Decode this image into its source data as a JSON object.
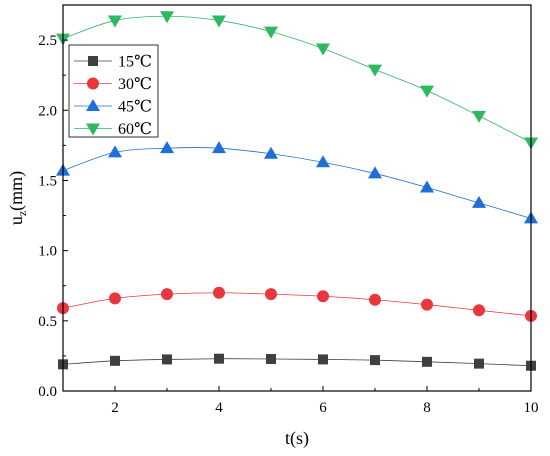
{
  "chart_data": {
    "type": "line",
    "title": "",
    "xlabel": "t(s)",
    "ylabel_main": "u",
    "ylabel_sub": "z",
    "ylabel_unit": "(mm)",
    "xlim": [
      1,
      10
    ],
    "ylim": [
      0,
      2.75
    ],
    "xticks": [
      2,
      4,
      6,
      8,
      10
    ],
    "yticks": [
      0.0,
      0.5,
      1.0,
      1.5,
      2.0,
      2.5
    ],
    "xtick_labels": [
      "2",
      "4",
      "6",
      "8",
      "10"
    ],
    "ytick_labels": [
      "0.0",
      "0.5",
      "1.0",
      "1.5",
      "2.0",
      "2.5"
    ],
    "grid": false,
    "legend_position": "top-left",
    "x": [
      1,
      2,
      3,
      4,
      5,
      6,
      7,
      8,
      9,
      10
    ],
    "series": [
      {
        "name": "15℃",
        "marker": "square",
        "color": "#404040",
        "values": [
          0.19,
          0.215,
          0.225,
          0.23,
          0.228,
          0.225,
          0.22,
          0.208,
          0.195,
          0.18
        ]
      },
      {
        "name": "30℃",
        "marker": "circle",
        "color": "#e8383d",
        "values": [
          0.59,
          0.66,
          0.69,
          0.7,
          0.69,
          0.675,
          0.65,
          0.615,
          0.575,
          0.535
        ]
      },
      {
        "name": "45℃",
        "marker": "triangle-up",
        "color": "#1f6fd6",
        "values": [
          1.57,
          1.7,
          1.73,
          1.73,
          1.69,
          1.63,
          1.55,
          1.45,
          1.34,
          1.23
        ]
      },
      {
        "name": "60℃",
        "marker": "triangle-down",
        "color": "#2eb862",
        "values": [
          2.51,
          2.64,
          2.67,
          2.64,
          2.56,
          2.44,
          2.29,
          2.14,
          1.96,
          1.77
        ]
      }
    ]
  }
}
